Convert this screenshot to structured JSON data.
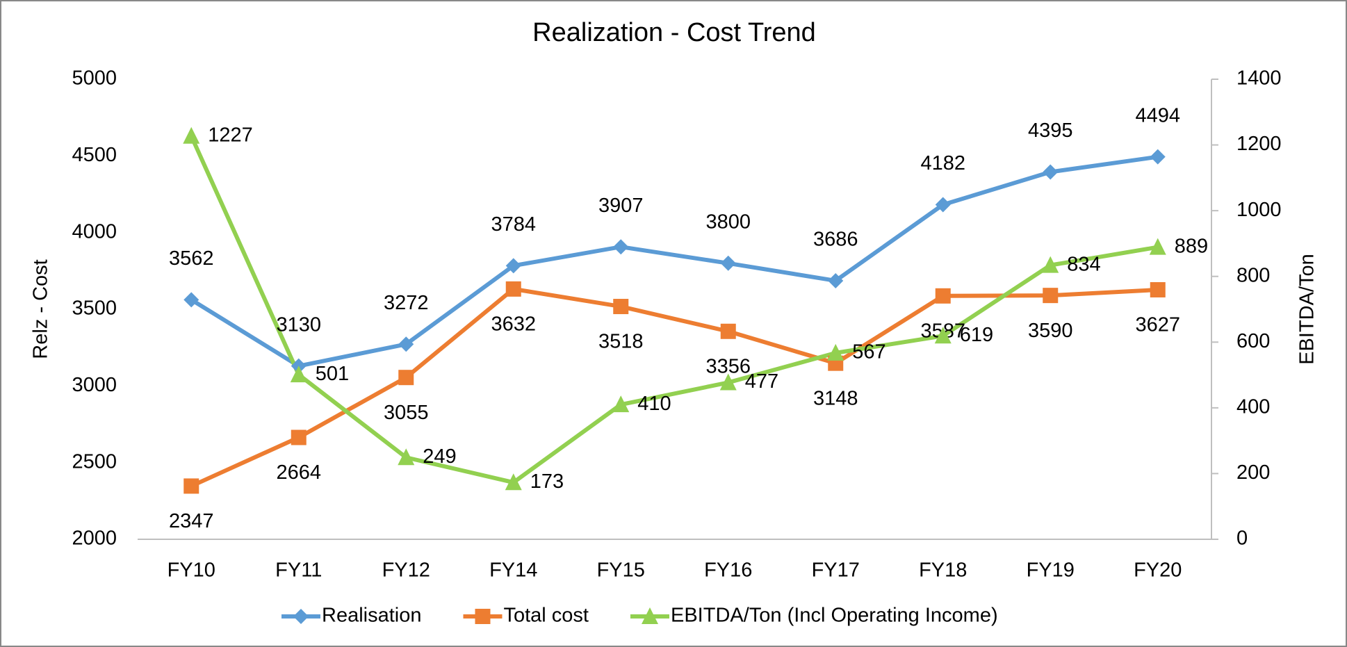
{
  "chart_data": {
    "type": "line",
    "title": "Realization - Cost Trend",
    "categories": [
      "FY10",
      "FY11",
      "FY12",
      "FY14",
      "FY15",
      "FY16",
      "FY17",
      "FY18",
      "FY19",
      "FY20"
    ],
    "y_label": "Relz - Cost",
    "y2_label": "EBITDA/Ton",
    "ylim": [
      2000,
      5000
    ],
    "yticks": [
      2000,
      2500,
      3000,
      3500,
      4000,
      4500,
      5000
    ],
    "y2lim": [
      0,
      1400
    ],
    "y2ticks": [
      0,
      200,
      400,
      600,
      800,
      1000,
      1200,
      1400
    ],
    "legend": "bottom",
    "series": [
      {
        "name": "Realisation",
        "color": "#5b9bd5",
        "marker": "diamond",
        "values": [
          3562,
          3130,
          3272,
          3784,
          3907,
          3800,
          3686,
          4182,
          4395,
          4494
        ]
      },
      {
        "name": "Total cost",
        "color": "#ed7d31",
        "marker": "square",
        "values": [
          2347,
          2664,
          3055,
          3632,
          3518,
          3356,
          3148,
          3587,
          3590,
          3627
        ]
      },
      {
        "name": "EBITDA/Ton (Incl Operating Income)",
        "color": "#92d050",
        "marker": "triangle",
        "axis": "y2",
        "values": [
          1227,
          501,
          249,
          173,
          410,
          477,
          567,
          619,
          834,
          889
        ]
      }
    ]
  }
}
